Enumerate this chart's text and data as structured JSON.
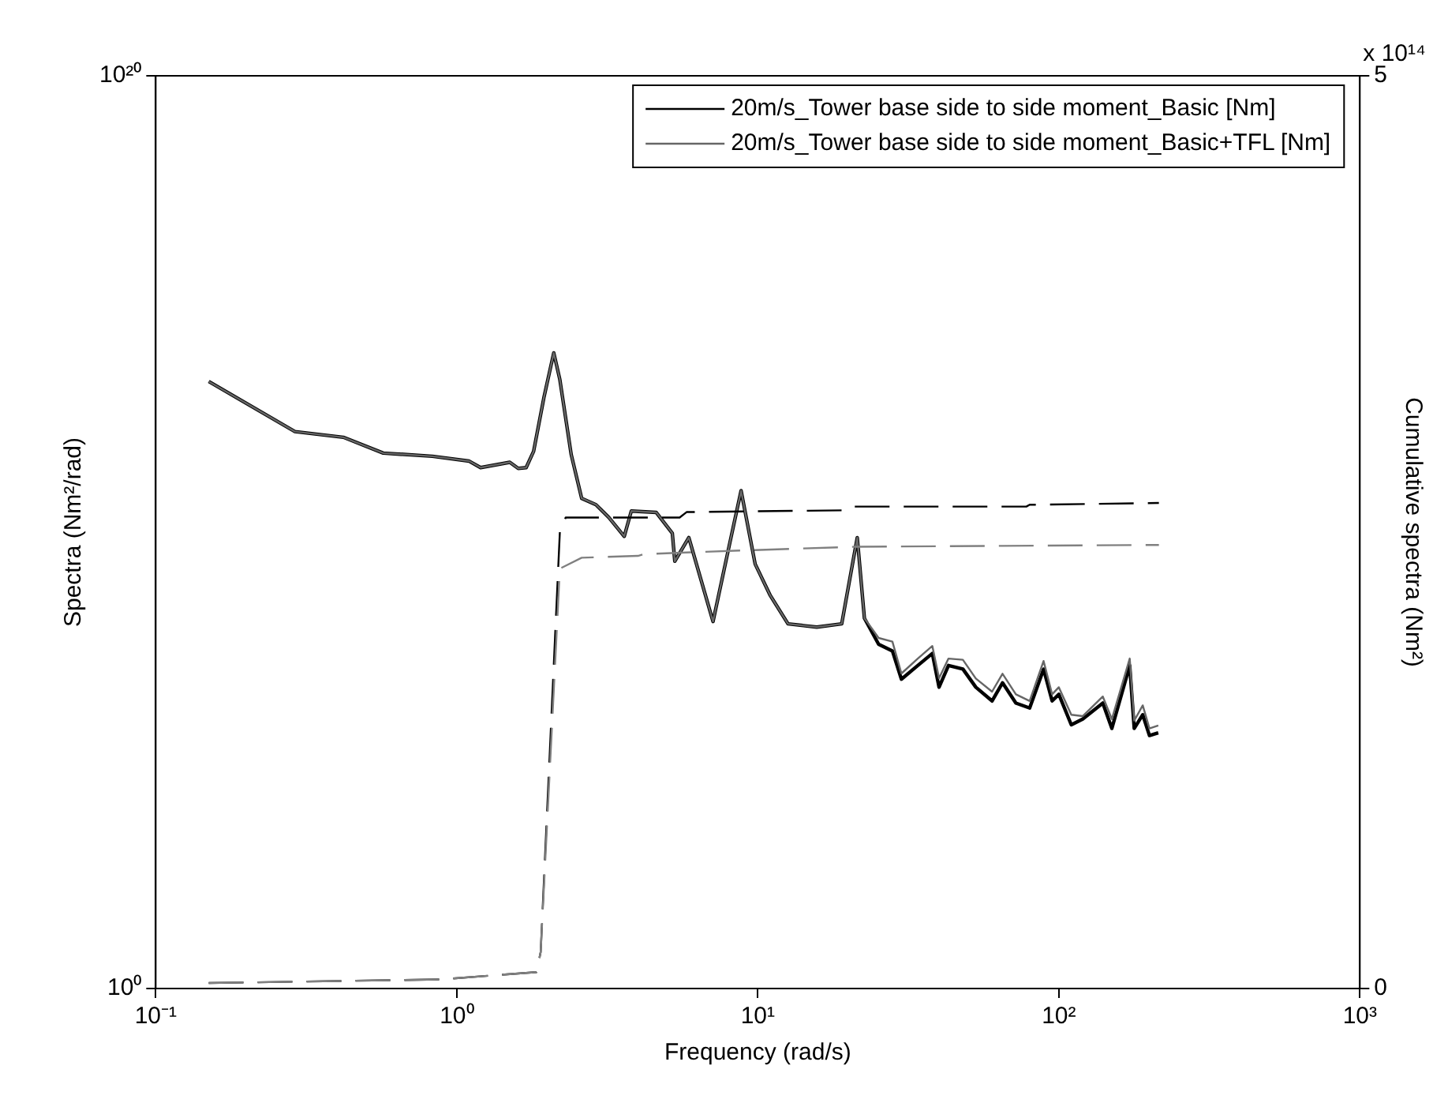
{
  "chart_data": {
    "type": "line",
    "log": "xy",
    "marker": "none",
    "legend": "top right",
    "xlabel": "Frequency (rad/s)",
    "ylabel": "Spectra (Nm²/rad)",
    "y2label": "Cumulative spectra (Nm²)",
    "annotations": [
      "x 10¹⁴"
    ],
    "xlim": [
      0.1,
      1000
    ],
    "xticks": [
      {
        "value": 0.1,
        "label": "10⁻¹"
      },
      {
        "value": 1,
        "label": "10⁰"
      },
      {
        "value": 10,
        "label": "10¹"
      },
      {
        "value": 100,
        "label": "10²"
      },
      {
        "value": 1000,
        "label": "10³"
      }
    ],
    "ylim": [
      1,
      1e+20
    ],
    "yticks": [
      {
        "value": 1,
        "label": "10⁰"
      },
      {
        "value": 1e+20,
        "label": "10²⁰"
      }
    ],
    "y2lim": [
      0,
      5
    ],
    "y2ticks": [
      0,
      5
    ],
    "series": [
      {
        "name": "20m/s_Tower base side to side moment_Basic [Nm]",
        "color": "#000000",
        "line_style": "solid",
        "x": [
          0.15,
          0.29,
          0.42,
          0.57,
          0.83,
          1.1,
          1.2,
          1.5,
          1.6,
          1.7,
          1.8,
          1.95,
          2.1,
          2.2,
          2.4,
          2.6,
          2.9,
          3.2,
          3.6,
          3.8,
          4.6,
          5.2,
          5.3,
          5.9,
          7.1,
          8.0,
          8.8,
          9.8,
          11,
          12.6,
          15.7,
          19,
          21.4,
          22.6,
          25.2,
          28,
          30,
          34,
          38,
          40,
          43,
          48,
          53,
          60,
          65,
          72,
          80,
          89,
          95,
          100,
          110,
          120,
          140,
          150,
          172,
          178,
          190,
          200,
          214
        ],
        "values": [
          20000000000000.0,
          1600000000000.0,
          1200000000000.0,
          540000000000.0,
          460000000000.0,
          360000000000.0,
          260000000000.0,
          340000000000.0,
          250000000000.0,
          260000000000.0,
          590000000000.0,
          9300000000000.0,
          85000000000000.0,
          22000000000000.0,
          500000000000.0,
          55000000000.0,
          40000000000.0,
          21000000000.0,
          8100000000.0,
          29000000000.0,
          27000000000.0,
          9500000000.0,
          2300000000.0,
          7600000000.0,
          110000000.0,
          4400000000.0,
          81000000000.0,
          2000000000.0,
          410000000.0,
          98000000.0,
          83000000.0,
          98000000.0,
          7600000000.0,
          130000000.0,
          35000000.0,
          25000000.0,
          6000000.0,
          12000000.0,
          22000000.0,
          4000000.0,
          12000000.0,
          10000000.0,
          4000000.0,
          2000000.0,
          5000000.0,
          1800000.0,
          1400000.0,
          10000000.0,
          2000000.0,
          2800000.0,
          600000.0,
          800000.0,
          1800000.0,
          500000.0,
          12000000.0,
          500000.0,
          1000000.0,
          350000.0,
          400000.0
        ]
      },
      {
        "name": "20m/s_Tower base side to side moment_Basic+TFL [Nm]",
        "color": "#666666",
        "line_style": "solid",
        "x": [
          0.15,
          0.29,
          0.42,
          0.57,
          0.83,
          1.1,
          1.2,
          1.5,
          1.6,
          1.7,
          1.8,
          1.95,
          2.1,
          2.2,
          2.4,
          2.6,
          2.9,
          3.2,
          3.6,
          3.8,
          4.6,
          5.2,
          5.3,
          5.9,
          7.1,
          8.0,
          8.8,
          9.8,
          11,
          12.6,
          15.7,
          19,
          21.4,
          22.6,
          25.2,
          28,
          30,
          34,
          38,
          40,
          43,
          48,
          53,
          60,
          65,
          72,
          80,
          89,
          95,
          100,
          110,
          120,
          140,
          150,
          172,
          178,
          190,
          200,
          214
        ],
        "values": [
          20000000000000.0,
          1600000000000.0,
          1200000000000.0,
          540000000000.0,
          460000000000.0,
          360000000000.0,
          260000000000.0,
          340000000000.0,
          250000000000.0,
          260000000000.0,
          590000000000.0,
          9300000000000.0,
          85000000000000.0,
          22000000000000.0,
          500000000000.0,
          55000000000.0,
          40000000000.0,
          21000000000.0,
          8100000000.0,
          29000000000.0,
          27000000000.0,
          9500000000.0,
          2300000000.0,
          7600000000.0,
          110000000.0,
          4400000000.0,
          81000000000.0,
          2000000000.0,
          410000000.0,
          98000000.0,
          83000000.0,
          98000000.0,
          7600000000.0,
          130000000.0,
          48000000.0,
          40000000.0,
          8000000.0,
          17000000.0,
          32000000.0,
          6300000.0,
          17000000.0,
          16000000.0,
          6200000.0,
          3200000.0,
          7900000.0,
          2800000.0,
          2000000.0,
          15000000.0,
          2800000.0,
          4000000.0,
          1000000.0,
          930000.0,
          2500000.0,
          800000.0,
          17000000.0,
          740000.0,
          1600000.0,
          500000.0,
          580000.0
        ]
      },
      {
        "color": "#000000",
        "line_style": "dashed",
        "axis": "y2",
        "x": [
          0.15,
          0.89,
          1.84,
          1.9,
          2.2,
          2.3,
          5.5,
          5.8,
          20,
          21,
          78,
          80,
          215
        ],
        "values": [
          0.03,
          0.05,
          0.09,
          0.2,
          2.5,
          2.58,
          2.58,
          2.61,
          2.62,
          2.64,
          2.64,
          2.65,
          2.66
        ]
      },
      {
        "color": "#808080",
        "line_style": "dashed",
        "axis": "y2",
        "x": [
          0.15,
          0.89,
          1.84,
          1.9,
          2.2,
          2.6,
          4,
          4.2,
          9,
          21,
          215
        ],
        "values": [
          0.03,
          0.05,
          0.09,
          0.2,
          2.3,
          2.36,
          2.37,
          2.38,
          2.4,
          2.42,
          2.43
        ]
      }
    ]
  }
}
